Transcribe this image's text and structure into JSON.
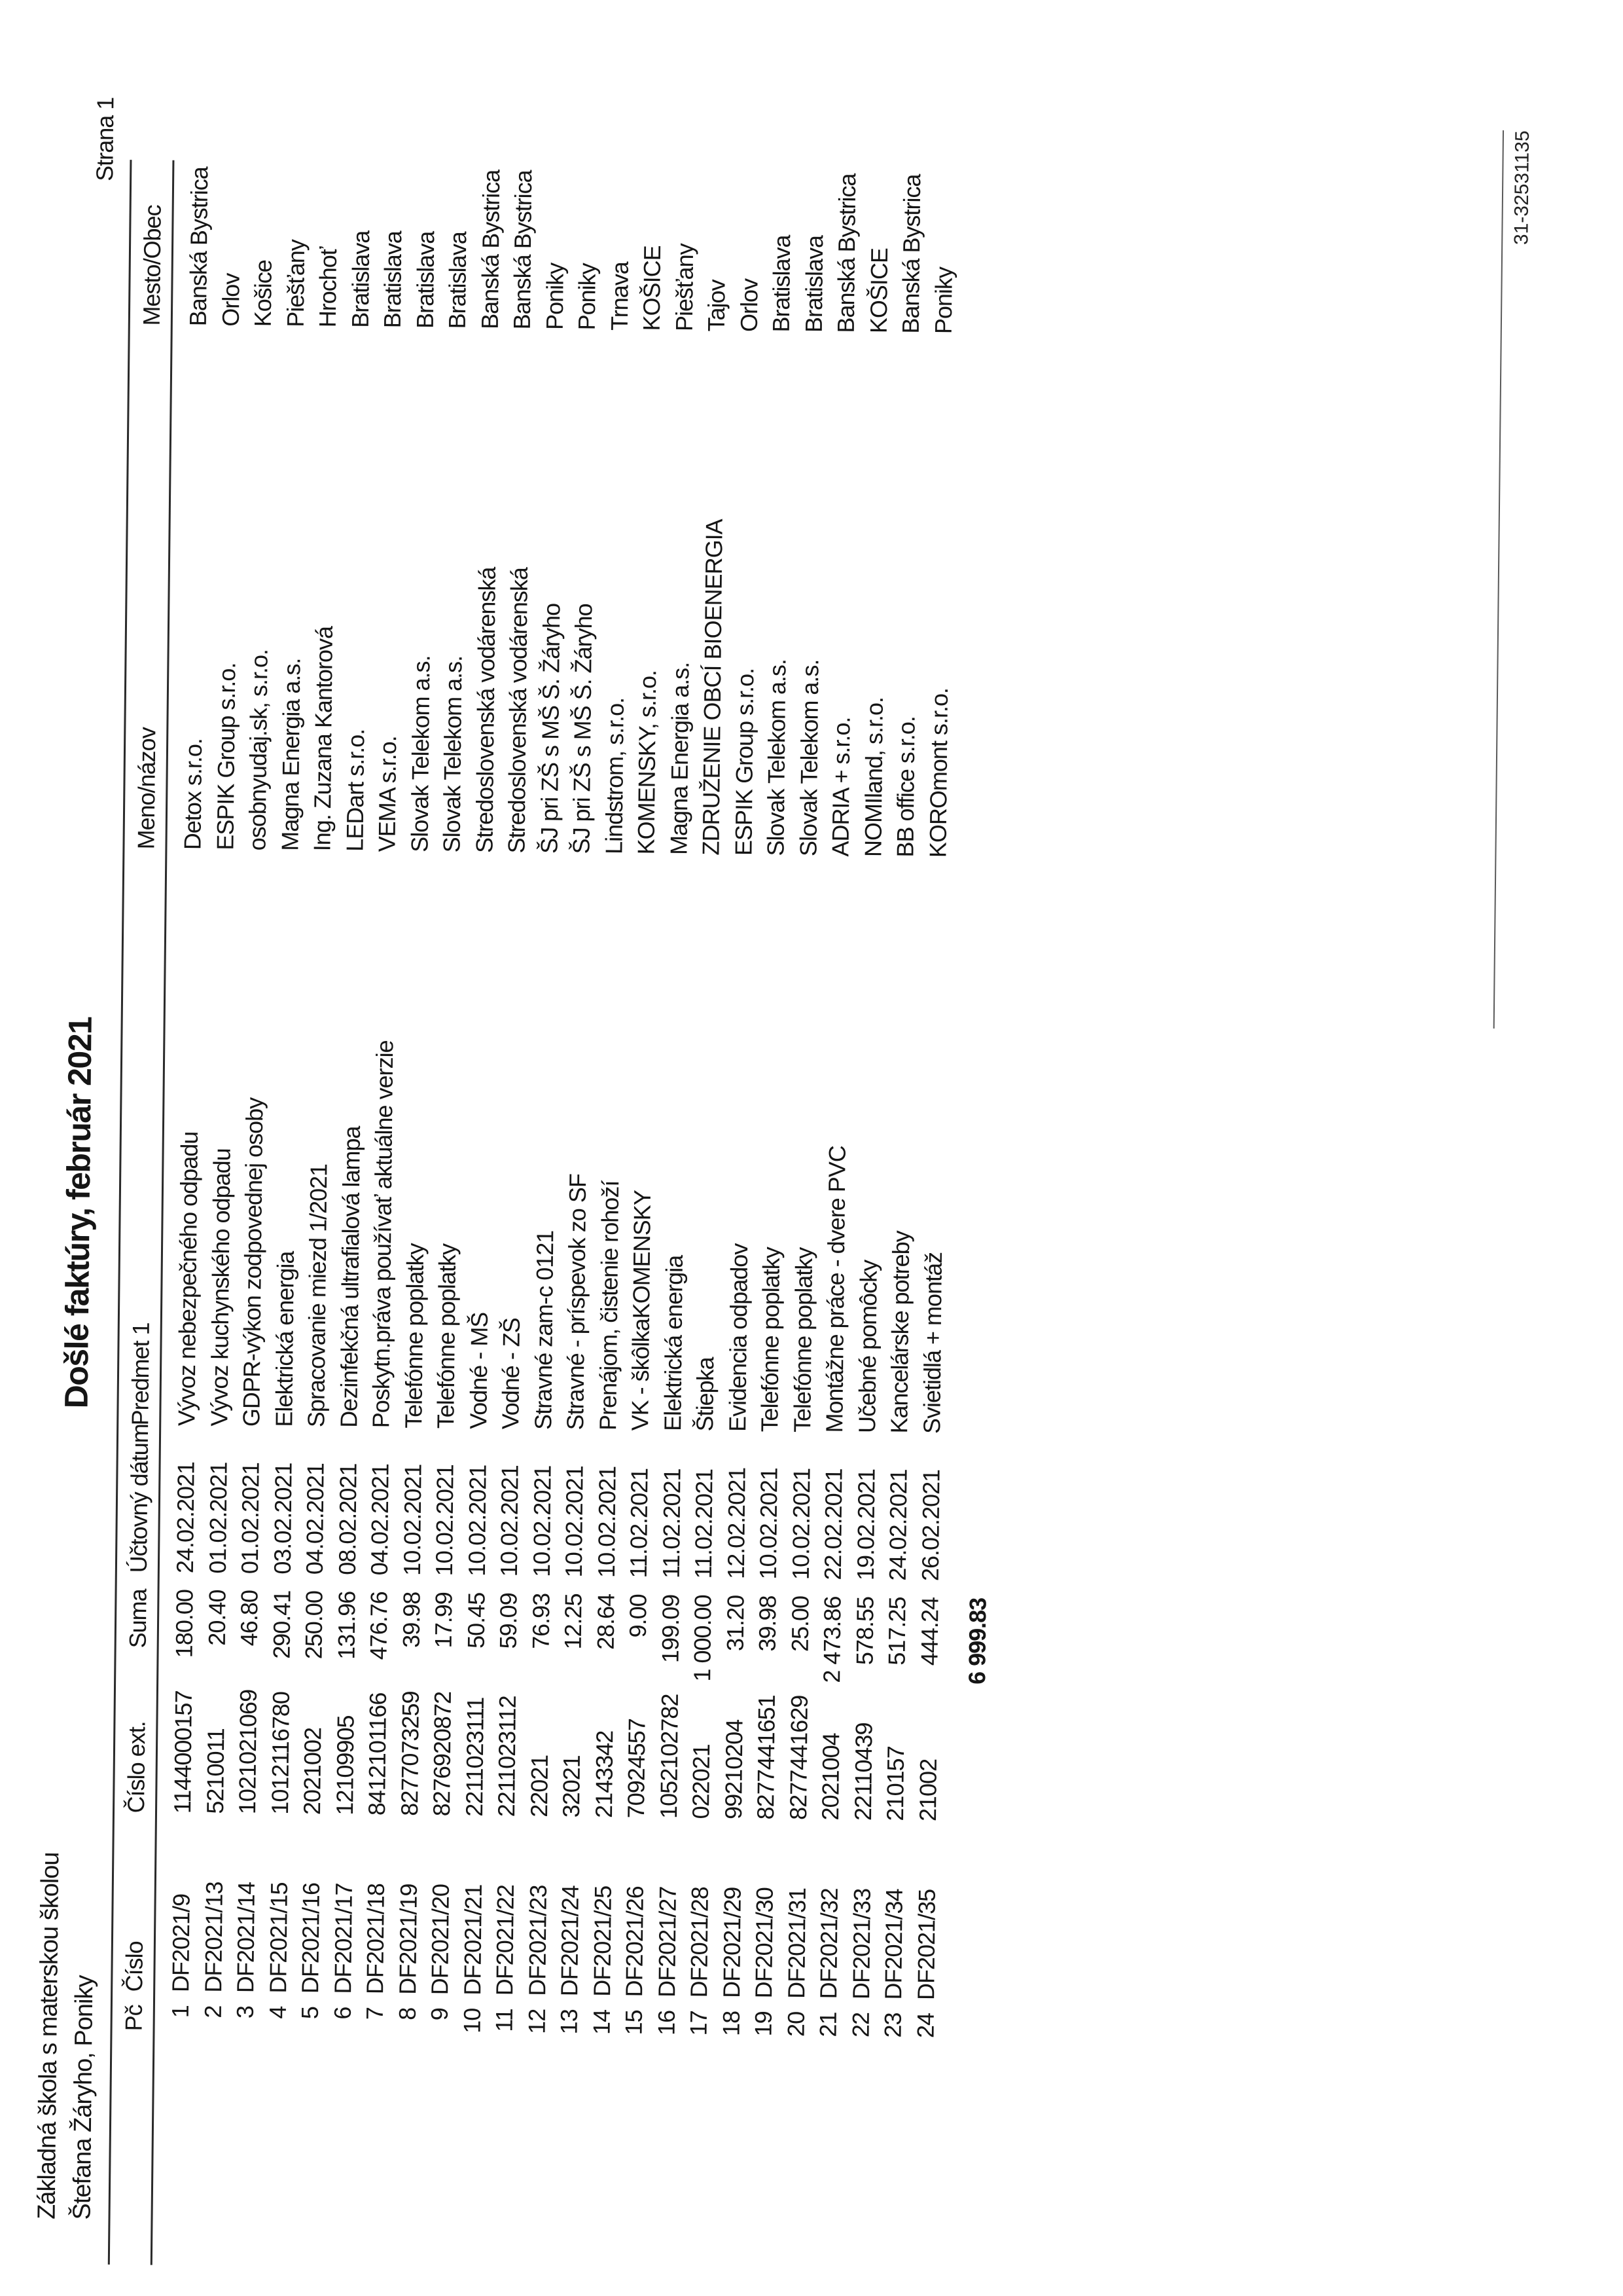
{
  "header": {
    "school_line1": "Základná škola s materskou školou",
    "school_line2": "Štefana Žáryho, Poniky",
    "title": "Došlé faktúry, február 2021",
    "page_label": "Strana 1"
  },
  "columns": {
    "pc": "Pč",
    "cislo": "Číslo",
    "cislo_ext": "Číslo ext.",
    "suma": "Suma",
    "datum": "Účtovný dátum",
    "predmet": "Predmet 1",
    "meno": "Meno/názov",
    "mesto": "Mesto/Obec"
  },
  "rows": [
    {
      "pc": "1",
      "cislo": "DF2021/9",
      "cislo_ext": "1144000157",
      "suma": "180.00",
      "datum": "24.02.2021",
      "predmet": "Vývoz nebezpečného odpadu",
      "meno": "Detox s.r.o.",
      "mesto": "Banská Bystrica"
    },
    {
      "pc": "2",
      "cislo": "DF2021/13",
      "cislo_ext": "5210011",
      "suma": "20.40",
      "datum": "01.02.2021",
      "predmet": "Vývoz kuchynského odpadu",
      "meno": "ESPIK Group s.r.o.",
      "mesto": "Orlov"
    },
    {
      "pc": "3",
      "cislo": "DF2021/14",
      "cislo_ext": "1021021069",
      "suma": "46.80",
      "datum": "01.02.2021",
      "predmet": "GDPR-výkon zodpovednej osoby",
      "meno": "osobnyudaj.sk, s.r.o.",
      "mesto": "Košice"
    },
    {
      "pc": "4",
      "cislo": "DF2021/15",
      "cislo_ext": "1012116780",
      "suma": "290.41",
      "datum": "03.02.2021",
      "predmet": "Elektrická energia",
      "meno": "Magna Energia a.s.",
      "mesto": "Piešťany"
    },
    {
      "pc": "5",
      "cislo": "DF2021/16",
      "cislo_ext": "2021002",
      "suma": "250.00",
      "datum": "04.02.2021",
      "predmet": "Spracovanie miezd 1/2021",
      "meno": "Ing. Zuzana Kantorová",
      "mesto": "Hrochoť"
    },
    {
      "pc": "6",
      "cislo": "DF2021/17",
      "cislo_ext": "12109905",
      "suma": "131.96",
      "datum": "08.02.2021",
      "predmet": "Dezinfekčná ultrafialová lampa",
      "meno": "LEDart s.r.o.",
      "mesto": "Bratislava"
    },
    {
      "pc": "7",
      "cislo": "DF2021/18",
      "cislo_ext": "8412101166",
      "suma": "476.76",
      "datum": "04.02.2021",
      "predmet": "Poskytn.práva používať aktuálne verzie",
      "meno": "VEMA s.r.o.",
      "mesto": "Bratislava"
    },
    {
      "pc": "8",
      "cislo": "DF2021/19",
      "cislo_ext": "8277073259",
      "suma": "39.98",
      "datum": "10.02.2021",
      "predmet": "Telefónne poplatky",
      "meno": "Slovak Telekom a.s.",
      "mesto": "Bratislava"
    },
    {
      "pc": "9",
      "cislo": "DF2021/20",
      "cislo_ext": "8276920872",
      "suma": "17.99",
      "datum": "10.02.2021",
      "predmet": "Telefónne poplatky",
      "meno": "Slovak Telekom a.s.",
      "mesto": "Bratislava"
    },
    {
      "pc": "10",
      "cislo": "DF2021/21",
      "cislo_ext": "2211023111",
      "suma": "50.45",
      "datum": "10.02.2021",
      "predmet": "Vodné - MŠ",
      "meno": "Stredoslovenská vodárenská",
      "mesto": "Banská Bystrica"
    },
    {
      "pc": "11",
      "cislo": "DF2021/22",
      "cislo_ext": "2211023112",
      "suma": "59.09",
      "datum": "10.02.2021",
      "predmet": "Vodné - ZŠ",
      "meno": "Stredoslovenská vodárenská",
      "mesto": "Banská Bystrica"
    },
    {
      "pc": "12",
      "cislo": "DF2021/23",
      "cislo_ext": "22021",
      "suma": "76.93",
      "datum": "10.02.2021",
      "predmet": "Stravné zam-c 0121",
      "meno": "ŠJ pri ZŠ s MŠ Š. Žáryho",
      "mesto": "Poniky"
    },
    {
      "pc": "13",
      "cislo": "DF2021/24",
      "cislo_ext": "32021",
      "suma": "12.25",
      "datum": "10.02.2021",
      "predmet": "Stravné - príspevok zo SF",
      "meno": "ŠJ pri ZŠ s MŠ Š. Žáryho",
      "mesto": "Poniky"
    },
    {
      "pc": "14",
      "cislo": "DF2021/25",
      "cislo_ext": "2143342",
      "suma": "28.64",
      "datum": "10.02.2021",
      "predmet": "Prenájom, čistenie rohoží",
      "meno": "Lindstrom, s.r.o.",
      "mesto": "Trnava"
    },
    {
      "pc": "15",
      "cislo": "DF2021/26",
      "cislo_ext": "70924557",
      "suma": "9.00",
      "datum": "11.02.2021",
      "predmet": "VK - škôlkaKOMENSKY",
      "meno": "KOMENSKY, s.r.o.",
      "mesto": "KOŠICE"
    },
    {
      "pc": "16",
      "cislo": "DF2021/27",
      "cislo_ext": "1052102782",
      "suma": "199.09",
      "datum": "11.02.2021",
      "predmet": "Elektrická energia",
      "meno": "Magna Energia a.s.",
      "mesto": "Piešťany"
    },
    {
      "pc": "17",
      "cislo": "DF2021/28",
      "cislo_ext": "022021",
      "suma": "1 000.00",
      "datum": "11.02.2021",
      "predmet": "Štiepka",
      "meno": "ZDRUŽENIE OBCÍ BIOENERGIA",
      "mesto": "Tajov"
    },
    {
      "pc": "18",
      "cislo": "DF2021/29",
      "cislo_ext": "99210204",
      "suma": "31.20",
      "datum": "12.02.2021",
      "predmet": "Evidencia odpadov",
      "meno": "ESPIK Group s.r.o.",
      "mesto": "Orlov"
    },
    {
      "pc": "19",
      "cislo": "DF2021/30",
      "cislo_ext": "8277441651",
      "suma": "39.98",
      "datum": "10.02.2021",
      "predmet": "Telefónne poplatky",
      "meno": "Slovak Telekom a.s.",
      "mesto": "Bratislava"
    },
    {
      "pc": "20",
      "cislo": "DF2021/31",
      "cislo_ext": "8277441629",
      "suma": "25.00",
      "datum": "10.02.2021",
      "predmet": "Telefónne poplatky",
      "meno": "Slovak Telekom a.s.",
      "mesto": "Bratislava"
    },
    {
      "pc": "21",
      "cislo": "DF2021/32",
      "cislo_ext": "2021004",
      "suma": "2 473.86",
      "datum": "22.02.2021",
      "predmet": "Montážne práce - dvere PVC",
      "meno": "ADRIA + s.r.o.",
      "mesto": "Banská Bystrica"
    },
    {
      "pc": "22",
      "cislo": "DF2021/33",
      "cislo_ext": "22110439",
      "suma": "578.55",
      "datum": "19.02.2021",
      "predmet": "Učebné pomôcky",
      "meno": "NOMIland, s.r.o.",
      "mesto": "KOŠICE"
    },
    {
      "pc": "23",
      "cislo": "DF2021/34",
      "cislo_ext": "210157",
      "suma": "517.25",
      "datum": "24.02.2021",
      "predmet": "Kancelárske potreby",
      "meno": "BB office s.r.o.",
      "mesto": "Banská Bystrica"
    },
    {
      "pc": "24",
      "cislo": "DF2021/35",
      "cislo_ext": "21002",
      "suma": "444.24",
      "datum": "26.02.2021",
      "predmet": "Svietidlá + montáž",
      "meno": "KOROmont s.r.o.",
      "mesto": "Poniky"
    }
  ],
  "total_suma": "6 999.83",
  "footer": {
    "code": "31-32531135"
  }
}
